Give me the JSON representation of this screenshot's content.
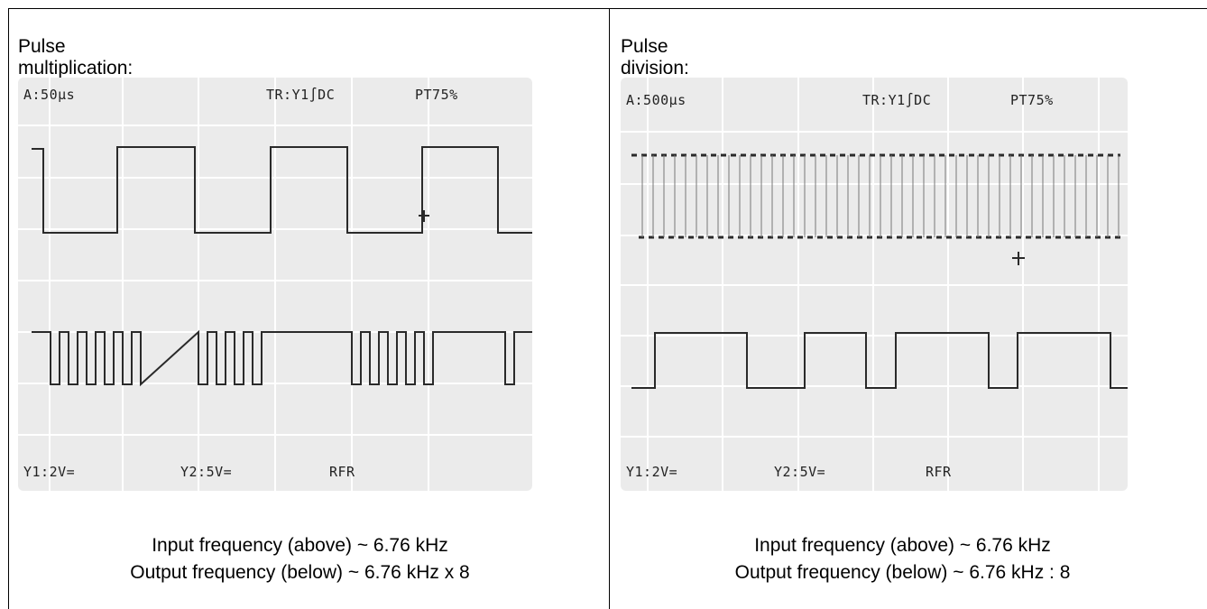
{
  "panels": [
    {
      "title": "Pulse multiplication:",
      "osd": {
        "timebase": "A:50µs",
        "trigger": "TR:Y1∫DC",
        "pretrigger": "PT75%",
        "ch1": "Y1:2V=",
        "ch2": "Y2:5V=",
        "mode": "RFR"
      },
      "caption": [
        "Input frequency (above) ~ 6.76 kHz",
        "Output frequency (below) ~ 6.76 kHz x 8"
      ],
      "trace_top": {
        "periods": [
          1,
          1,
          1,
          1,
          1,
          1,
          1
        ],
        "pulses": 1
      },
      "trace_bottom": {
        "burst_pulses": 8
      }
    },
    {
      "title": "Pulse division:",
      "osd": {
        "timebase": "A:500µs",
        "trigger": "TR:Y1∫DC",
        "pretrigger": "PT75%",
        "ch1": "Y1:2V=",
        "ch2": "Y2:5V=",
        "mode": "RFR"
      },
      "caption": [
        "Input frequency (above) ~ 6.76 kHz",
        "Output frequency (below) ~ 6.76 kHz : 8"
      ],
      "trace_top": {
        "pulses": 44
      },
      "trace_bottom": {
        "divider": 8
      }
    }
  ],
  "colors": {
    "screen": "#ebebeb",
    "grid": "#ffffff",
    "trace": "#2a2a2a"
  }
}
